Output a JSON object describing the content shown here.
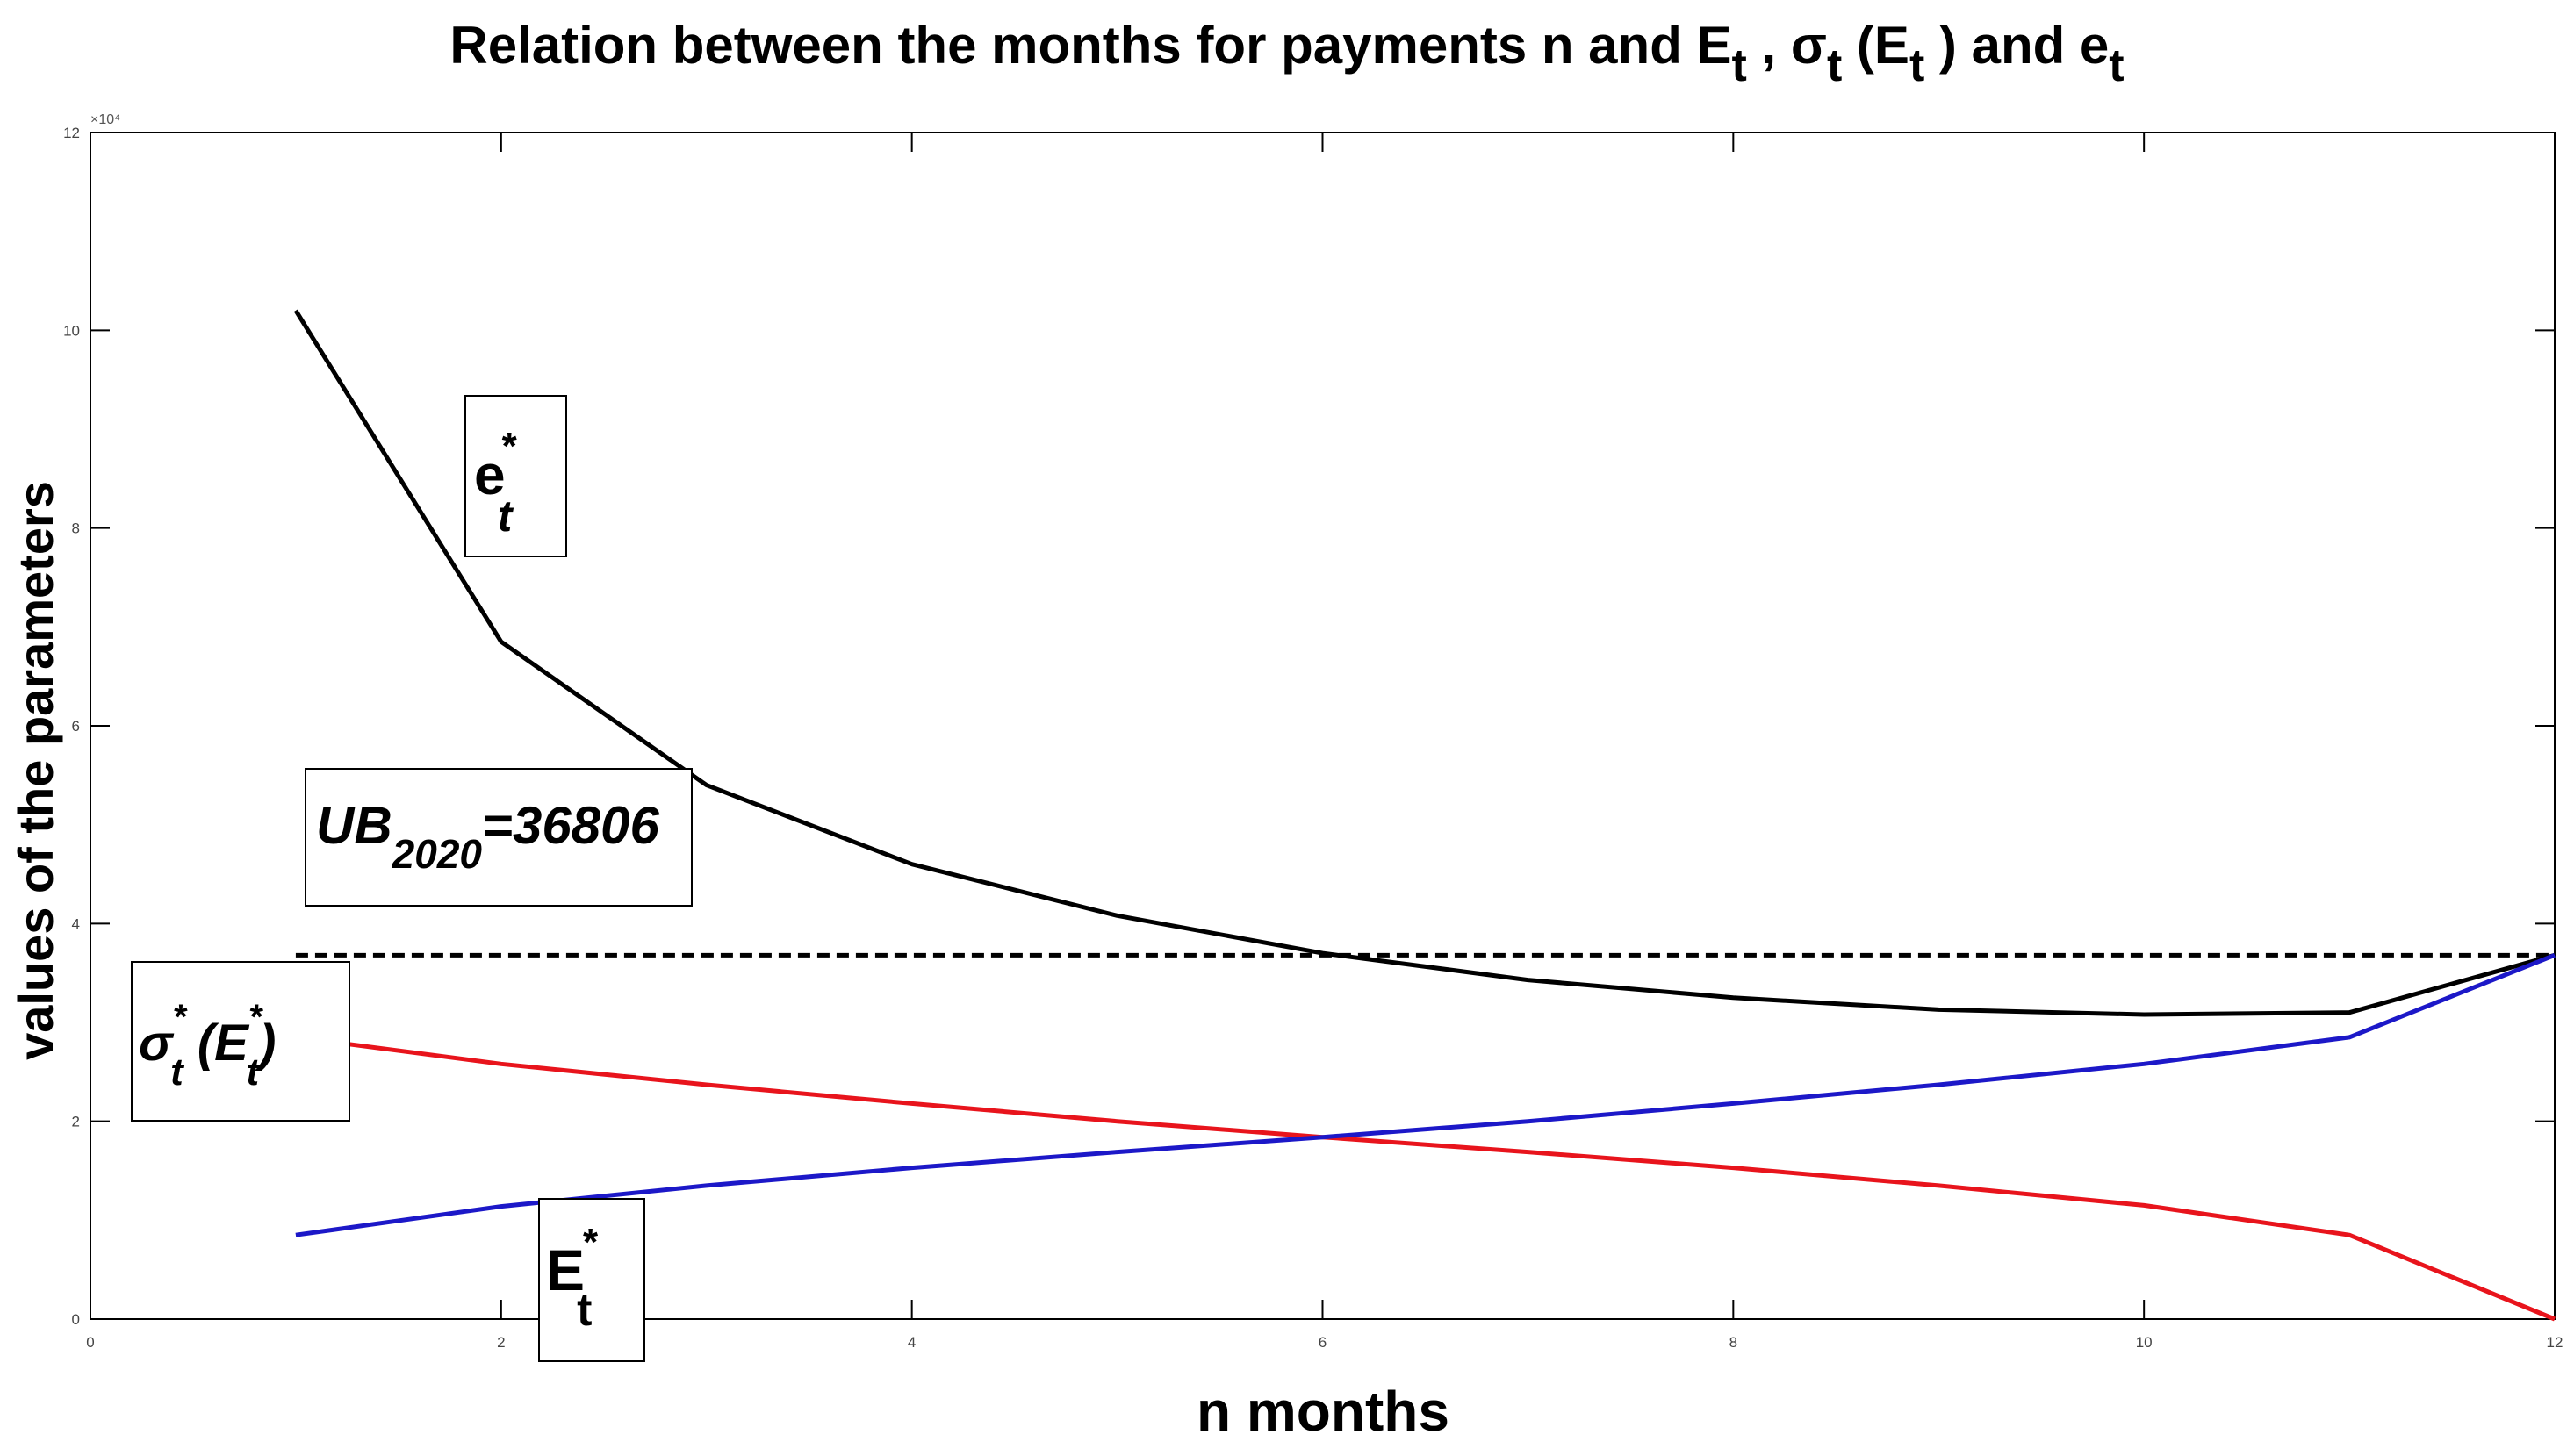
{
  "chart_data": {
    "type": "line",
    "title": {
      "prefix": "Relation between the months for payments n and E",
      "sub1": "t",
      "mid1": " , σ",
      "sub2": "t",
      "mid2": " (E",
      "sub3": "t",
      "mid3": " ) and e",
      "sub4": "t"
    },
    "xlabel": "n months",
    "ylabel": "values of the parameters",
    "xlim": [
      0,
      12
    ],
    "ylim": [
      0,
      120000
    ],
    "x_ticks": [
      0,
      2,
      4,
      6,
      8,
      10,
      12
    ],
    "x_tick_labels": [
      "0",
      "2",
      "4",
      "6",
      "8",
      "10",
      "12"
    ],
    "y_ticks": [
      0,
      20000,
      40000,
      60000,
      80000,
      100000,
      120000
    ],
    "y_tick_labels": [
      "0",
      "2",
      "4",
      "6",
      "8",
      "10",
      "12"
    ],
    "y_exponent_label": "×10⁴",
    "grid": false,
    "series": [
      {
        "key": "e",
        "color": "#000000",
        "x": [
          1,
          2,
          3,
          4,
          5,
          6,
          7,
          8,
          9,
          10,
          11,
          12
        ],
        "values": [
          102000,
          68500,
          54000,
          46000,
          40800,
          37000,
          34300,
          32500,
          31300,
          30800,
          31000,
          36806
        ]
      },
      {
        "key": "sigma",
        "color": "#e8141c",
        "x": [
          1,
          2,
          3,
          4,
          5,
          6,
          7,
          8,
          9,
          10,
          11,
          12
        ],
        "values": [
          28500,
          25800,
          23700,
          21800,
          20000,
          18400,
          16900,
          15300,
          13500,
          11500,
          8500,
          0
        ]
      },
      {
        "key": "E",
        "color": "#1c18c8",
        "x": [
          1,
          2,
          3,
          4,
          5,
          6,
          7,
          8,
          9,
          10,
          11,
          12
        ],
        "values": [
          8500,
          11400,
          13500,
          15300,
          16900,
          18400,
          20000,
          21800,
          23700,
          25800,
          28500,
          36806
        ]
      }
    ],
    "reference_line": {
      "value": 36806,
      "x_range": [
        1,
        12
      ],
      "style": "dashed",
      "color": "#000000"
    },
    "annotations": {
      "e_label": {
        "main": "e",
        "sup": "*",
        "sub": "t"
      },
      "ub_label": {
        "main": "UB",
        "sub": "2020",
        "rest": "=36806"
      },
      "sigma_label": {
        "main": "σ",
        "sup1": "*",
        "sub1": "t",
        "open": " (E",
        "sup2": "*",
        "sub2": "t",
        "close": ")"
      },
      "E_label": {
        "main": "E",
        "sup": "*",
        "sub": "t"
      }
    }
  }
}
